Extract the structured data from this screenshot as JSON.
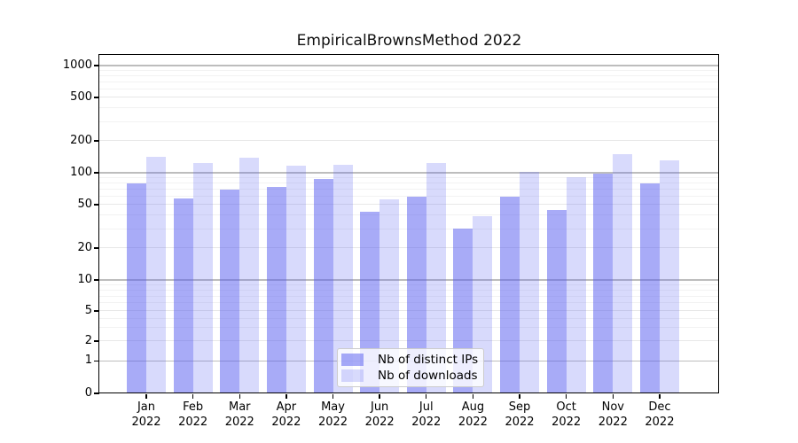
{
  "chart_data": {
    "type": "bar",
    "title": "EmpiricalBrownsMethod 2022",
    "categories": [
      "Jan",
      "Feb",
      "Mar",
      "Apr",
      "May",
      "Jun",
      "Jul",
      "Aug",
      "Sep",
      "Oct",
      "Nov",
      "Dec"
    ],
    "year_label": "2022",
    "series": [
      {
        "name": "Nb of distinct IPs",
        "color": "rgba(88,93,240,0.52)",
        "values": [
          80,
          57,
          69,
          73,
          88,
          43,
          60,
          30,
          60,
          45,
          98,
          80
        ]
      },
      {
        "name": "Nb of downloads",
        "color": "rgba(88,93,240,0.23)",
        "values": [
          142,
          124,
          138,
          117,
          118,
          56,
          124,
          39,
          102,
          90,
          149,
          132
        ]
      }
    ],
    "xlabel": "",
    "ylabel": "",
    "yticks": [
      0,
      1,
      2,
      5,
      10,
      20,
      50,
      100,
      200,
      500,
      1000
    ],
    "yscale": "symlog",
    "ylim": [
      0,
      1300
    ],
    "grid": true,
    "legend_position": "lower center",
    "colors": {
      "major_grid": "#bdbdbd",
      "labeled_grid": "#e7e7e7",
      "minor_grid": "#f2f2f2",
      "spine": "#000000",
      "text": "#000000"
    }
  }
}
